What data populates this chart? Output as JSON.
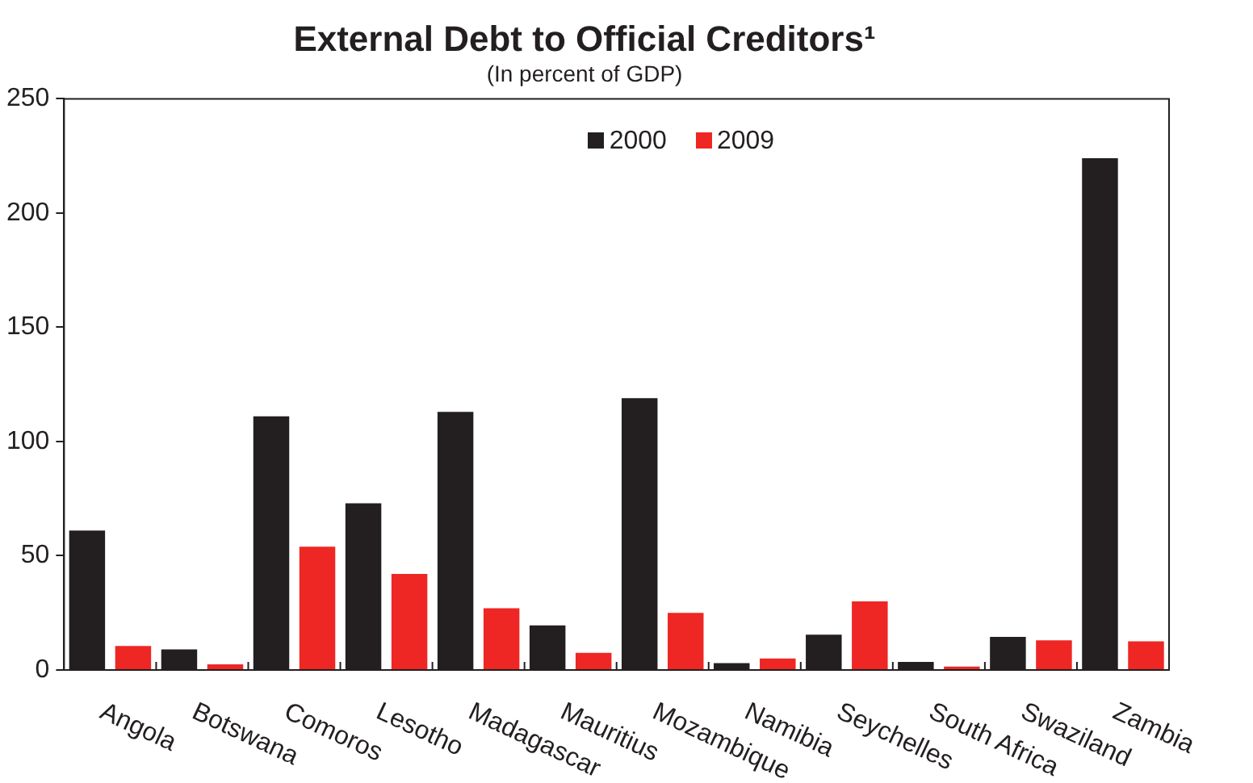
{
  "chart_data": {
    "type": "bar",
    "title": "External Debt to Official Creditors¹",
    "subtitle": "(In percent of GDP)",
    "categories": [
      "Angola",
      "Botswana",
      "Comoros",
      "Lesotho",
      "Madagascar",
      "Mauritius",
      "Mozambique",
      "Namibia",
      "Seychelles",
      "South Africa",
      "Swaziland",
      "Zambia"
    ],
    "series": [
      {
        "name": "2000",
        "color": "#231f20",
        "values": [
          61,
          9,
          111,
          73,
          113,
          19.5,
          119,
          3,
          15.5,
          3.5,
          14.5,
          224
        ]
      },
      {
        "name": "2009",
        "color": "#ee2724",
        "values": [
          10.5,
          2.5,
          54,
          42,
          27,
          7.5,
          25,
          5,
          30,
          1.5,
          13,
          12.5
        ]
      }
    ],
    "ylim": [
      0,
      250
    ],
    "yticks": [
      0,
      50,
      100,
      150,
      200,
      250
    ],
    "grid": false,
    "legend": "top"
  }
}
